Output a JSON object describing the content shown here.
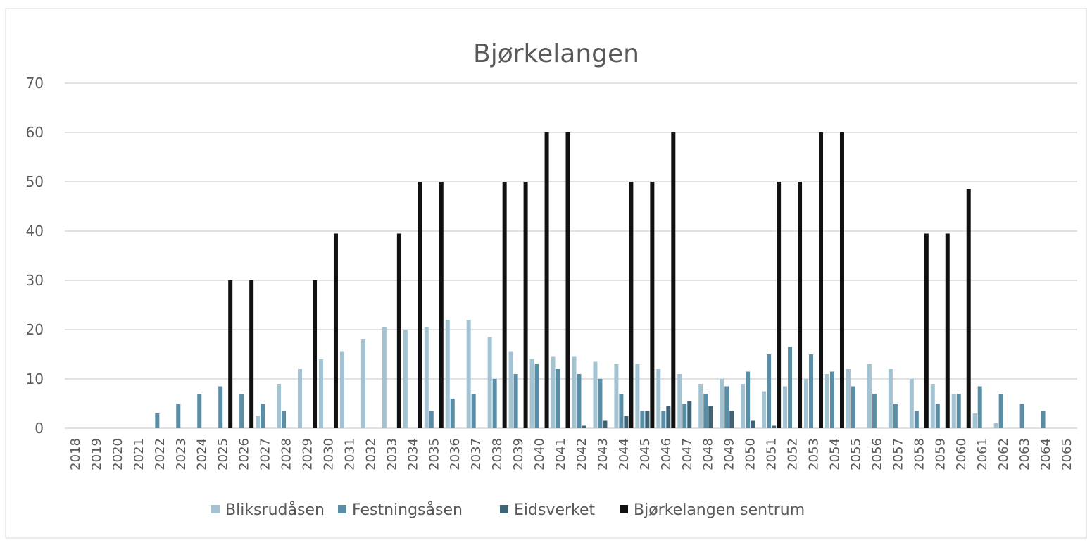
{
  "chart_data": {
    "type": "bar",
    "title": "Bjørkelangen",
    "categories": [
      "2018",
      "2019",
      "2020",
      "2021",
      "2022",
      "2023",
      "2024",
      "2025",
      "2026",
      "2027",
      "2028",
      "2029",
      "2030",
      "2031",
      "2032",
      "2033",
      "2034",
      "2035",
      "2036",
      "2037",
      "2038",
      "2039",
      "2040",
      "2041",
      "2042",
      "2043",
      "2044",
      "2045",
      "2046",
      "2047",
      "2048",
      "2049",
      "2050",
      "2051",
      "2052",
      "2053",
      "2054",
      "2055",
      "2056",
      "2057",
      "2058",
      "2059",
      "2060",
      "2061",
      "2062",
      "2063",
      "2064",
      "2065"
    ],
    "series": [
      {
        "name": "Bliksrudåsen",
        "color": "#a3c3d3",
        "values": [
          0,
          0,
          0,
          0,
          0,
          0,
          0,
          0,
          0,
          2.5,
          9,
          12,
          14,
          15.5,
          18,
          20.5,
          20,
          20.5,
          22,
          22,
          18.5,
          15.5,
          14,
          14.5,
          14.5,
          13.5,
          13,
          13,
          12,
          11,
          9,
          10,
          9,
          7.5,
          8.5,
          10,
          11,
          12,
          13,
          12,
          10,
          9,
          7,
          3,
          1,
          0,
          0,
          0
        ]
      },
      {
        "name": "Festningsåsen",
        "color": "#5a8ea7",
        "values": [
          0,
          0,
          0,
          0,
          3,
          5,
          7,
          8.5,
          7,
          5,
          3.5,
          0,
          0,
          0,
          0,
          0,
          0,
          3.5,
          6,
          7,
          10,
          11,
          13,
          12,
          11,
          10,
          7,
          3.5,
          3.5,
          5,
          7,
          8.5,
          11.5,
          15,
          16.5,
          15,
          11.5,
          8.5,
          7,
          5,
          3.5,
          5,
          7,
          8.5,
          7,
          5,
          3.5,
          0
        ]
      },
      {
        "name": "Eidsverket",
        "color": "#3e6476",
        "values": [
          0,
          0,
          0,
          0,
          0,
          0,
          0,
          0,
          0,
          0,
          0,
          0,
          0,
          0,
          0,
          0,
          0,
          0,
          0,
          0,
          0,
          0,
          0,
          0,
          0.5,
          1.5,
          2.5,
          3.5,
          4.5,
          5.5,
          4.5,
          3.5,
          1.5,
          0.5,
          0,
          0,
          0,
          0,
          0,
          0,
          0,
          0,
          0,
          0,
          0,
          0,
          0,
          0
        ]
      },
      {
        "name": "Bjørkelangen sentrum",
        "color": "#111111",
        "values": [
          0,
          0,
          0,
          0,
          0,
          0,
          0,
          30,
          30,
          0,
          0,
          30,
          39.5,
          0,
          0,
          39.5,
          50,
          50,
          0,
          0,
          50,
          50,
          60,
          60,
          0,
          0,
          50,
          50,
          60,
          0,
          0,
          0,
          0,
          50,
          50,
          60,
          60,
          0,
          0,
          0,
          39.5,
          39.5,
          48.5,
          0,
          0,
          0,
          0,
          0
        ]
      }
    ],
    "ylim": [
      0,
      70
    ],
    "yticks": [
      0,
      10,
      20,
      30,
      40,
      50,
      60,
      70
    ],
    "grid": true,
    "legend": "bottom"
  }
}
